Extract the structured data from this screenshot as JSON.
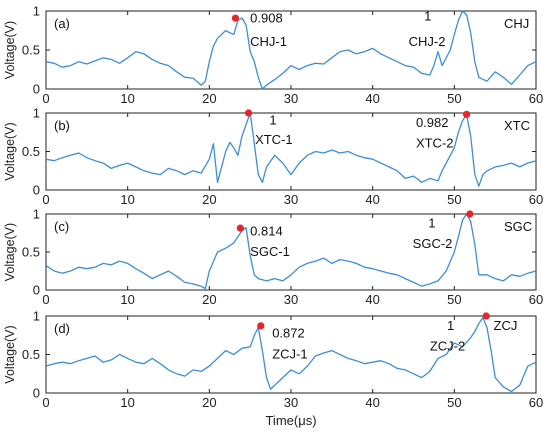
{
  "chart_data": [
    {
      "type": "line",
      "panel_label": "(a)",
      "legend": "CHJ",
      "ylabel": "Voltage(V)",
      "xlim": [
        0,
        60
      ],
      "ylim": [
        0,
        1
      ],
      "xticks": [
        "0",
        "10",
        "20",
        "30",
        "40",
        "50",
        "60"
      ],
      "yticks": [
        "0",
        "0.5",
        "1"
      ],
      "series": [
        {
          "color": "#3b8fd6",
          "x": [
            0,
            1,
            2,
            3,
            4,
            5,
            6,
            7,
            8,
            9,
            10,
            11,
            12,
            13,
            14,
            15,
            16,
            17,
            18,
            19,
            19.5,
            20,
            20.5,
            21,
            22,
            22.5,
            23,
            23.5,
            24,
            24.5,
            25,
            25.5,
            26,
            26.5,
            27,
            28,
            29,
            30,
            31,
            32,
            33,
            34,
            35,
            36,
            37,
            38,
            39,
            40,
            41,
            42,
            43,
            44,
            45,
            46,
            47,
            47.5,
            48,
            48.5,
            49,
            49.5,
            50,
            50.5,
            51,
            51.5,
            52,
            52.5,
            53,
            54,
            55,
            56,
            57,
            58,
            59,
            60
          ],
          "y": [
            0.35,
            0.33,
            0.28,
            0.3,
            0.35,
            0.32,
            0.36,
            0.4,
            0.38,
            0.33,
            0.4,
            0.48,
            0.45,
            0.38,
            0.33,
            0.3,
            0.22,
            0.15,
            0.14,
            0.05,
            0.1,
            0.35,
            0.55,
            0.65,
            0.75,
            0.72,
            0.7,
            0.88,
            0.91,
            0.82,
            0.48,
            0.35,
            0.15,
            0.0,
            0.05,
            0.12,
            0.2,
            0.3,
            0.25,
            0.3,
            0.33,
            0.32,
            0.4,
            0.48,
            0.5,
            0.45,
            0.48,
            0.52,
            0.45,
            0.4,
            0.35,
            0.3,
            0.28,
            0.2,
            0.18,
            0.3,
            0.48,
            0.3,
            0.4,
            0.5,
            0.7,
            0.88,
            1.0,
            0.95,
            0.72,
            0.35,
            0.15,
            0.1,
            0.22,
            0.15,
            0.06,
            0.18,
            0.3,
            0.35
          ]
        }
      ],
      "annotations": [
        {
          "text": "0.908",
          "x": 25,
          "y": 0.85
        },
        {
          "text": "CHJ-1",
          "x": 25,
          "y": 0.55
        }
      ],
      "annotations_left": [
        {
          "text": "1",
          "x": 46.3,
          "y": 0.88
        },
        {
          "text": "CHJ-2",
          "x": 44.4,
          "y": 0.55
        }
      ],
      "peak": {
        "x": 23.2,
        "y": 0.908
      }
    },
    {
      "type": "line",
      "panel_label": "(b)",
      "legend": "XTC",
      "ylabel": "Voltage(V)",
      "xlim": [
        0,
        60
      ],
      "ylim": [
        0,
        1
      ],
      "xticks": [
        "0",
        "10",
        "20",
        "30",
        "40",
        "50",
        "60"
      ],
      "yticks": [
        "0",
        "0.5",
        "1"
      ],
      "series": [
        {
          "color": "#3b8fd6",
          "x": [
            0,
            1,
            2,
            3,
            4,
            5,
            6,
            7,
            8,
            9,
            10,
            11,
            12,
            13,
            14,
            15,
            16,
            17,
            18,
            19,
            20,
            20.5,
            21,
            21.5,
            22,
            22.5,
            23,
            23.5,
            24,
            24.5,
            25,
            25.5,
            26,
            26.5,
            27,
            28,
            29,
            30,
            31,
            32,
            33,
            34,
            35,
            36,
            37,
            38,
            39,
            40,
            41,
            42,
            43,
            44,
            45,
            46,
            47,
            48,
            48.5,
            49,
            49.5,
            50,
            50.5,
            51,
            51.5,
            52,
            52.5,
            53,
            53.5,
            54,
            55,
            56,
            57,
            58,
            59,
            60
          ],
          "y": [
            0.4,
            0.38,
            0.42,
            0.45,
            0.48,
            0.42,
            0.38,
            0.35,
            0.28,
            0.32,
            0.35,
            0.3,
            0.25,
            0.22,
            0.2,
            0.28,
            0.25,
            0.2,
            0.25,
            0.22,
            0.4,
            0.6,
            0.1,
            0.3,
            0.5,
            0.62,
            0.55,
            0.45,
            0.7,
            0.85,
            1.0,
            0.6,
            0.2,
            0.1,
            0.3,
            0.45,
            0.35,
            0.2,
            0.35,
            0.45,
            0.5,
            0.48,
            0.52,
            0.48,
            0.5,
            0.45,
            0.42,
            0.4,
            0.35,
            0.3,
            0.25,
            0.15,
            0.18,
            0.1,
            0.15,
            0.12,
            0.25,
            0.35,
            0.45,
            0.55,
            0.75,
            0.9,
            0.98,
            0.7,
            0.2,
            0.05,
            0.2,
            0.25,
            0.3,
            0.32,
            0.35,
            0.3,
            0.35,
            0.38
          ]
        }
      ],
      "annotations": [
        {
          "text": "XTC-1",
          "x": 25.6,
          "y": 0.6
        }
      ],
      "annotations_center": [
        {
          "text": "1",
          "x": 27.8,
          "y": 0.85
        }
      ],
      "annotations_left": [
        {
          "text": "0.982",
          "x": 45.3,
          "y": 0.82
        },
        {
          "text": "XTC-2",
          "x": 45.3,
          "y": 0.55
        }
      ],
      "peak": {
        "x": 24.8,
        "y": 1.0
      },
      "peak2": {
        "x": 51.5,
        "y": 0.982
      }
    },
    {
      "type": "line",
      "panel_label": "(c)",
      "legend": "SGC",
      "ylabel": "Voltage(V)",
      "xlim": [
        0,
        60
      ],
      "ylim": [
        0,
        1
      ],
      "xticks": [
        "0",
        "10",
        "20",
        "30",
        "40",
        "50",
        "60"
      ],
      "yticks": [
        "0",
        "0.5",
        "1"
      ],
      "series": [
        {
          "color": "#3b8fd6",
          "x": [
            0,
            1,
            2,
            3,
            4,
            5,
            6,
            7,
            8,
            9,
            10,
            11,
            12,
            13,
            14,
            15,
            16,
            17,
            18,
            19,
            19.5,
            20,
            21,
            22,
            23,
            23.5,
            24,
            24.5,
            25,
            25.5,
            26,
            27,
            28,
            29,
            30,
            31,
            32,
            33,
            34,
            35,
            36,
            37,
            38,
            39,
            40,
            41,
            42,
            43,
            44,
            45,
            46,
            47,
            48,
            49,
            50,
            50.5,
            51,
            51.5,
            52,
            52.5,
            53,
            54,
            55,
            56,
            57,
            58,
            59,
            60
          ],
          "y": [
            0.32,
            0.25,
            0.22,
            0.25,
            0.3,
            0.28,
            0.3,
            0.35,
            0.33,
            0.38,
            0.35,
            0.28,
            0.22,
            0.15,
            0.2,
            0.25,
            0.18,
            0.1,
            0.08,
            0.05,
            0.02,
            0.25,
            0.5,
            0.55,
            0.62,
            0.7,
            0.78,
            0.82,
            0.45,
            0.2,
            0.15,
            0.12,
            0.15,
            0.12,
            0.2,
            0.3,
            0.35,
            0.38,
            0.42,
            0.35,
            0.4,
            0.38,
            0.35,
            0.3,
            0.28,
            0.25,
            0.22,
            0.2,
            0.15,
            0.1,
            0.05,
            0.08,
            0.12,
            0.25,
            0.5,
            0.7,
            0.92,
            1.0,
            0.9,
            0.6,
            0.2,
            0.2,
            0.15,
            0.12,
            0.2,
            0.18,
            0.22,
            0.25
          ]
        }
      ],
      "annotations": [
        {
          "text": "0.814",
          "x": 25,
          "y": 0.72
        },
        {
          "text": "SGC-1",
          "x": 25,
          "y": 0.45
        }
      ],
      "annotations_left": [
        {
          "text": "1",
          "x": 46.8,
          "y": 0.82
        },
        {
          "text": "SGC-2",
          "x": 44.9,
          "y": 0.55
        }
      ],
      "peak": {
        "x": 23.8,
        "y": 0.814
      },
      "peak2": {
        "x": 51.9,
        "y": 1.0
      }
    },
    {
      "type": "line",
      "panel_label": "(d)",
      "legend": "ZCJ",
      "ylabel": "Voltage(V)",
      "xlabel": "Time(μs)",
      "xlim": [
        0,
        60
      ],
      "ylim": [
        0,
        1
      ],
      "xticks": [
        "0",
        "10",
        "20",
        "30",
        "40",
        "50",
        "60"
      ],
      "yticks": [
        "0",
        "0.5",
        "1"
      ],
      "series": [
        {
          "color": "#3b8fd6",
          "x": [
            0,
            1,
            2,
            3,
            4,
            5,
            6,
            7,
            8,
            9,
            10,
            11,
            12,
            13,
            14,
            15,
            16,
            17,
            18,
            19,
            20,
            21,
            22,
            23,
            24,
            25,
            25.5,
            26,
            26.5,
            27,
            27.5,
            28,
            29,
            30,
            31,
            32,
            33,
            34,
            35,
            36,
            37,
            38,
            39,
            40,
            41,
            42,
            43,
            44,
            45,
            46,
            47,
            48,
            49,
            50,
            51,
            52,
            52.5,
            53,
            53.5,
            54,
            54.5,
            55,
            56,
            57,
            58,
            59,
            60
          ],
          "y": [
            0.35,
            0.38,
            0.4,
            0.38,
            0.42,
            0.45,
            0.48,
            0.4,
            0.43,
            0.5,
            0.45,
            0.4,
            0.38,
            0.45,
            0.38,
            0.3,
            0.25,
            0.22,
            0.3,
            0.28,
            0.35,
            0.45,
            0.55,
            0.5,
            0.58,
            0.6,
            0.75,
            0.85,
            0.55,
            0.2,
            0.05,
            0.1,
            0.2,
            0.3,
            0.25,
            0.35,
            0.48,
            0.52,
            0.55,
            0.5,
            0.45,
            0.42,
            0.38,
            0.4,
            0.42,
            0.38,
            0.32,
            0.3,
            0.25,
            0.2,
            0.28,
            0.45,
            0.5,
            0.65,
            0.6,
            0.72,
            0.8,
            0.9,
            0.98,
            0.85,
            0.55,
            0.2,
            0.08,
            0.02,
            0.1,
            0.35,
            0.4
          ]
        }
      ],
      "annotations": [
        {
          "text": "0.872",
          "x": 27.7,
          "y": 0.72
        },
        {
          "text": "ZCJ-1",
          "x": 27.7,
          "y": 0.45
        }
      ],
      "annotations_left": [
        {
          "text": "1",
          "x": 49.1,
          "y": 0.82
        },
        {
          "text": "ZCJ-2",
          "x": 47,
          "y": 0.55
        }
      ],
      "annotations_right": [
        {
          "text": "ZCJ",
          "x": 54.8,
          "y": 0.82
        }
      ],
      "peak": {
        "x": 26.3,
        "y": 0.872
      },
      "peak2": {
        "x": 53.9,
        "y": 1.0
      }
    }
  ]
}
